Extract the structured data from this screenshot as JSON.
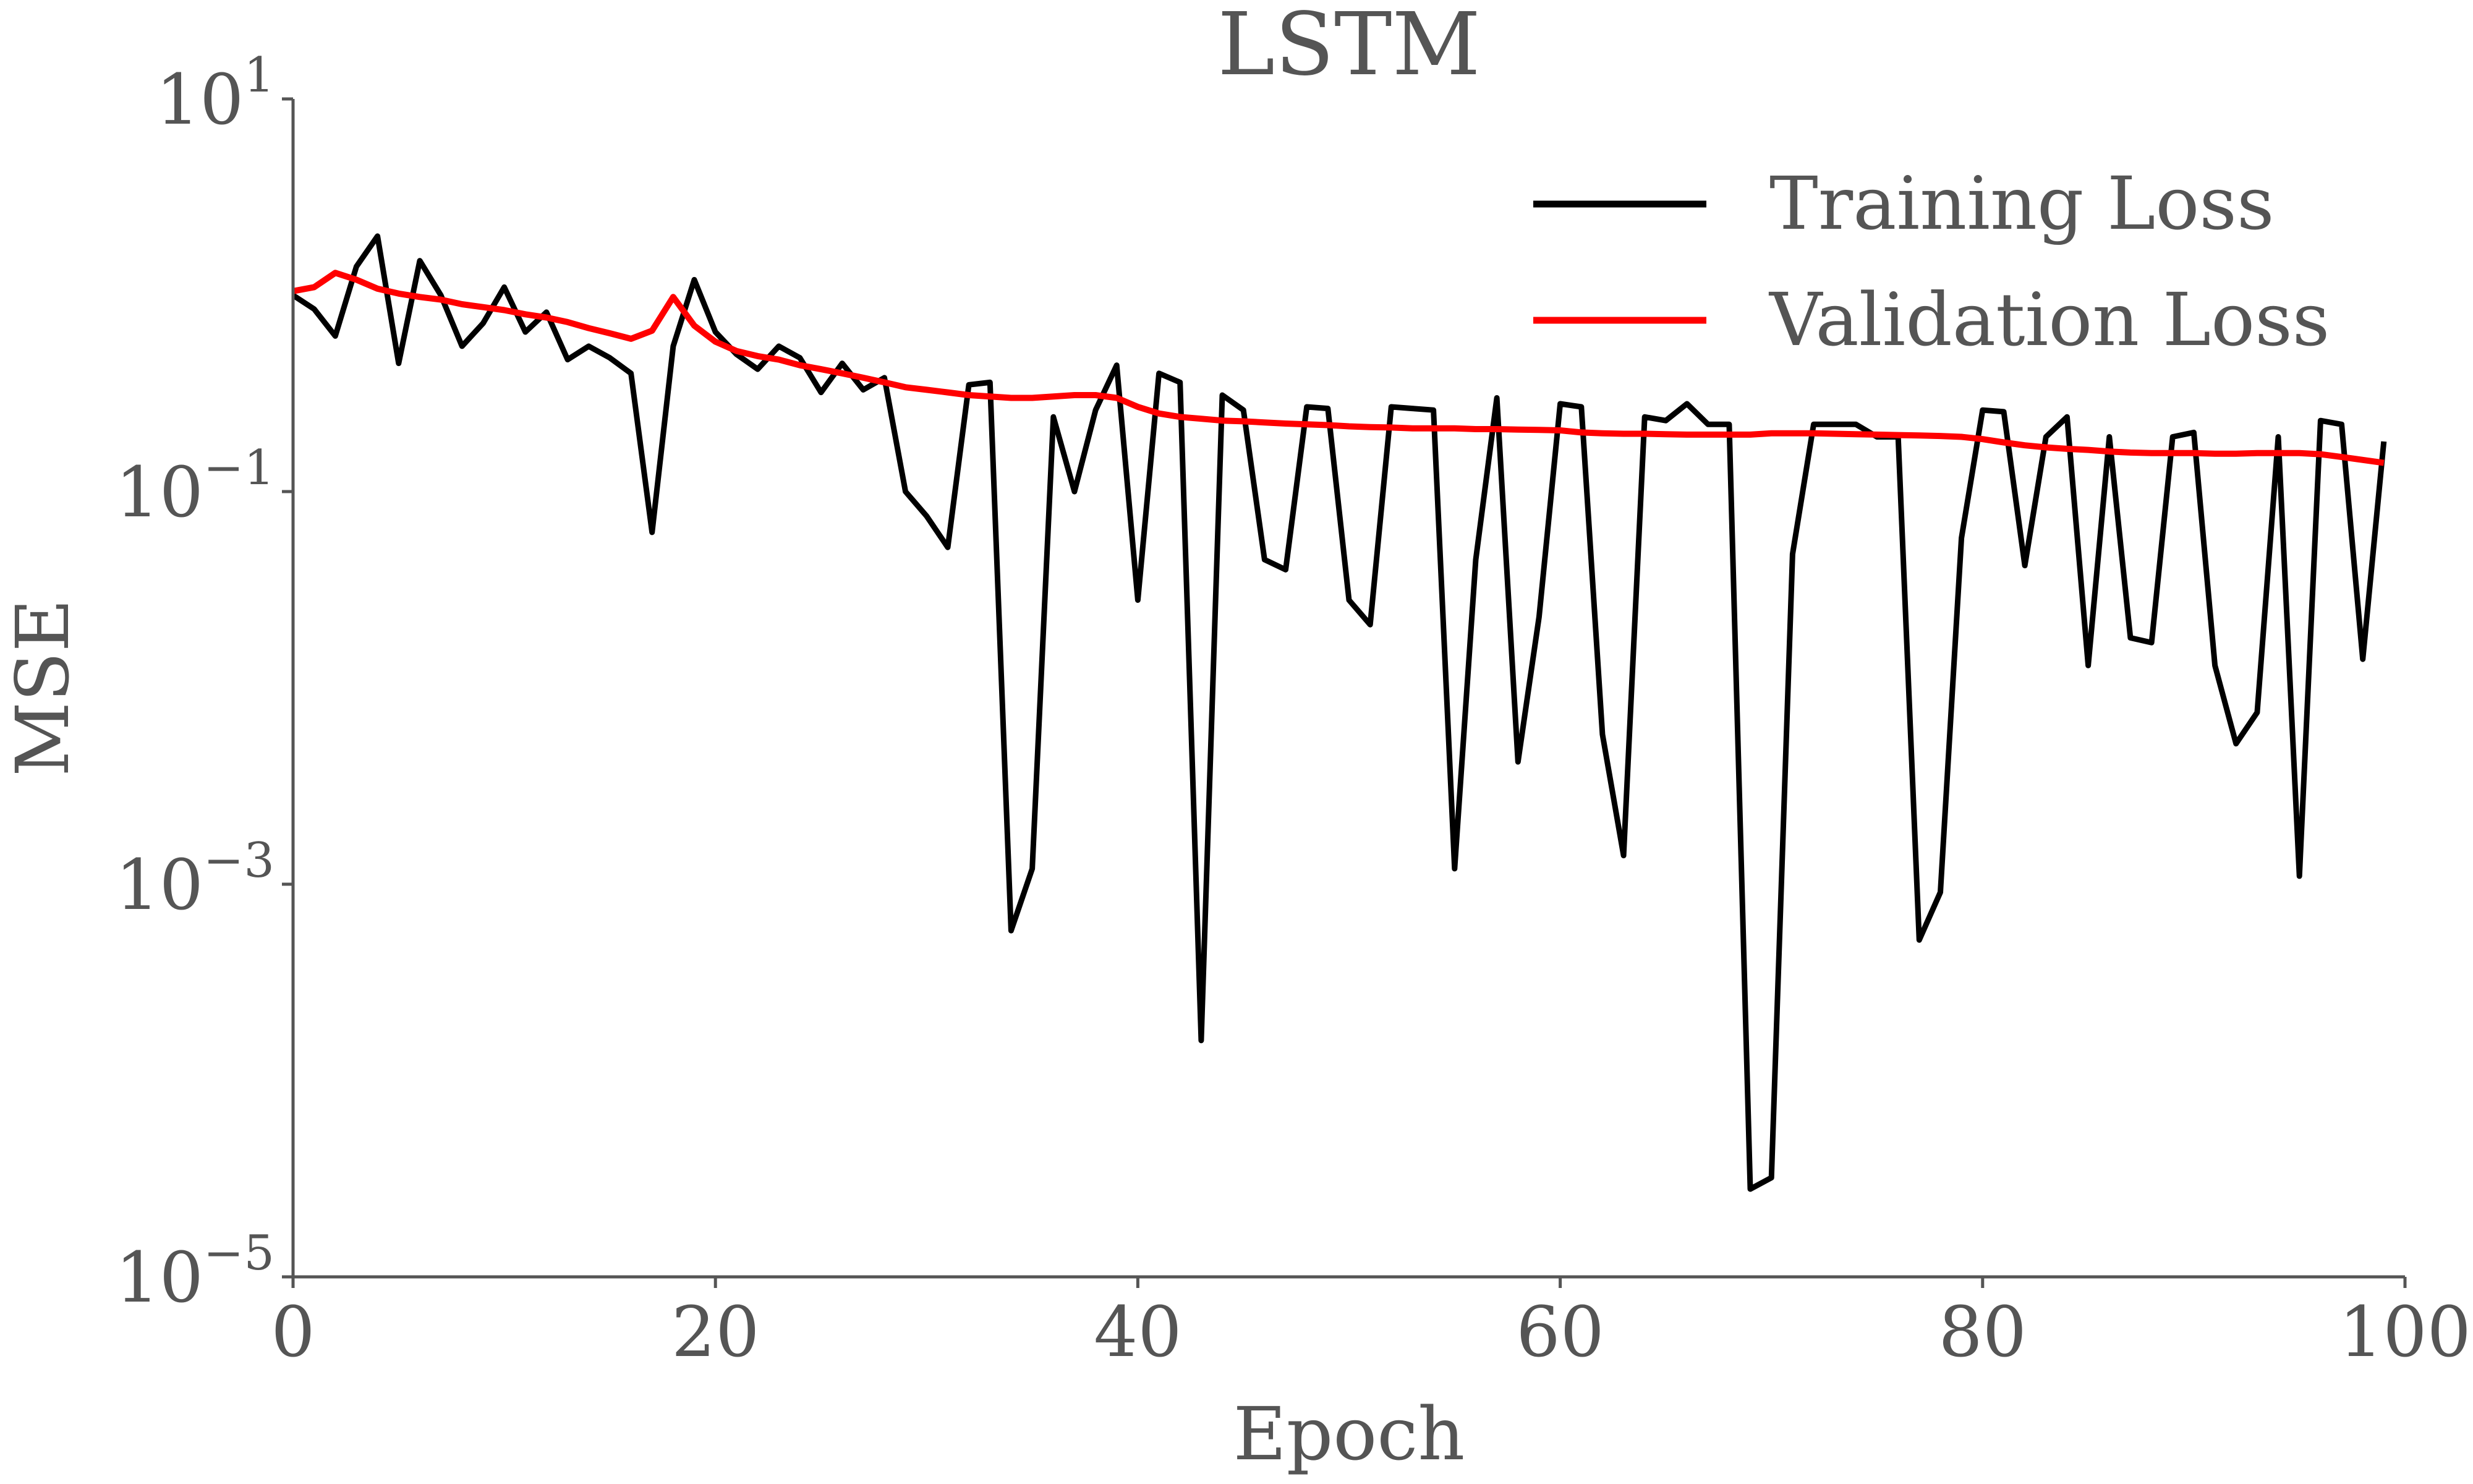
{
  "chart_data": {
    "type": "line",
    "title": "LSTM",
    "xlabel": "Epoch",
    "ylabel": "MSE",
    "xlim": [
      0,
      100
    ],
    "ylim": [
      1e-05,
      10
    ],
    "y_scale": "log",
    "grid": false,
    "legend_position": "top-right",
    "x_ticks": [
      {
        "value": 0,
        "label": "0"
      },
      {
        "value": 20,
        "label": "20"
      },
      {
        "value": 40,
        "label": "40"
      },
      {
        "value": 60,
        "label": "60"
      },
      {
        "value": 80,
        "label": "80"
      },
      {
        "value": 100,
        "label": "100"
      }
    ],
    "y_ticks": [
      {
        "value": 10,
        "base": "10",
        "exp": "1"
      },
      {
        "value": 0.1,
        "base": "10",
        "exp": "−1"
      },
      {
        "value": 0.001,
        "base": "10",
        "exp": "−3"
      },
      {
        "value": 1e-05,
        "base": "10",
        "exp": "−5"
      }
    ],
    "x": [
      0,
      1,
      2,
      3,
      4,
      5,
      6,
      7,
      8,
      9,
      10,
      11,
      12,
      13,
      14,
      15,
      16,
      17,
      18,
      19,
      20,
      21,
      22,
      23,
      24,
      25,
      26,
      27,
      28,
      29,
      30,
      31,
      32,
      33,
      34,
      35,
      36,
      37,
      38,
      39,
      40,
      41,
      42,
      43,
      44,
      45,
      46,
      47,
      48,
      49,
      50,
      51,
      52,
      53,
      54,
      55,
      56,
      57,
      58,
      59,
      60,
      61,
      62,
      63,
      64,
      65,
      66,
      67,
      68,
      69,
      70,
      71,
      72,
      73,
      74,
      75,
      76,
      77,
      78,
      79,
      80,
      81,
      82,
      83,
      84,
      85,
      86,
      87,
      88,
      89,
      90,
      91,
      92,
      93,
      94,
      95,
      96,
      97,
      98,
      99
    ],
    "series": [
      {
        "name": "Training Loss",
        "color": "#000000",
        "values": [
          1.0,
          0.85,
          0.62,
          1.4,
          2.0,
          0.45,
          1.5,
          1.0,
          0.55,
          0.72,
          1.1,
          0.65,
          0.82,
          0.47,
          0.55,
          0.48,
          0.4,
          0.062,
          0.55,
          1.2,
          0.65,
          0.5,
          0.42,
          0.55,
          0.48,
          0.32,
          0.45,
          0.33,
          0.38,
          0.1,
          0.075,
          0.052,
          0.35,
          0.36,
          0.00058,
          0.0012,
          0.24,
          0.1,
          0.26,
          0.44,
          0.028,
          0.4,
          0.36,
          0.00016,
          0.31,
          0.26,
          0.045,
          0.04,
          0.27,
          0.265,
          0.028,
          0.021,
          0.27,
          0.265,
          0.26,
          0.0012,
          0.045,
          0.3,
          0.0042,
          0.023,
          0.28,
          0.27,
          0.0058,
          0.0014,
          0.24,
          0.23,
          0.28,
          0.22,
          0.22,
          2.8e-05,
          3.2e-05,
          0.048,
          0.22,
          0.22,
          0.22,
          0.19,
          0.19,
          0.00052,
          0.00091,
          0.058,
          0.26,
          0.255,
          0.042,
          0.19,
          0.24,
          0.013,
          0.19,
          0.018,
          0.017,
          0.19,
          0.2,
          0.013,
          0.0052,
          0.0075,
          0.19,
          0.0011,
          0.23,
          0.22,
          0.014,
          0.18
        ]
      },
      {
        "name": "Validation Loss",
        "color": "#ff0000",
        "values": [
          1.05,
          1.1,
          1.3,
          1.2,
          1.08,
          1.02,
          0.98,
          0.95,
          0.9,
          0.87,
          0.84,
          0.8,
          0.77,
          0.73,
          0.68,
          0.64,
          0.6,
          0.66,
          0.98,
          0.7,
          0.58,
          0.52,
          0.49,
          0.47,
          0.44,
          0.42,
          0.4,
          0.38,
          0.36,
          0.34,
          0.33,
          0.32,
          0.31,
          0.305,
          0.3,
          0.3,
          0.305,
          0.31,
          0.31,
          0.3,
          0.27,
          0.25,
          0.24,
          0.235,
          0.23,
          0.228,
          0.225,
          0.222,
          0.22,
          0.218,
          0.215,
          0.213,
          0.212,
          0.21,
          0.21,
          0.21,
          0.208,
          0.208,
          0.207,
          0.206,
          0.205,
          0.2,
          0.198,
          0.197,
          0.197,
          0.196,
          0.195,
          0.195,
          0.195,
          0.195,
          0.198,
          0.198,
          0.198,
          0.197,
          0.196,
          0.195,
          0.194,
          0.193,
          0.192,
          0.19,
          0.185,
          0.178,
          0.172,
          0.168,
          0.165,
          0.163,
          0.16,
          0.158,
          0.157,
          0.157,
          0.157,
          0.156,
          0.156,
          0.157,
          0.157,
          0.157,
          0.155,
          0.15,
          0.145,
          0.14
        ]
      }
    ]
  }
}
